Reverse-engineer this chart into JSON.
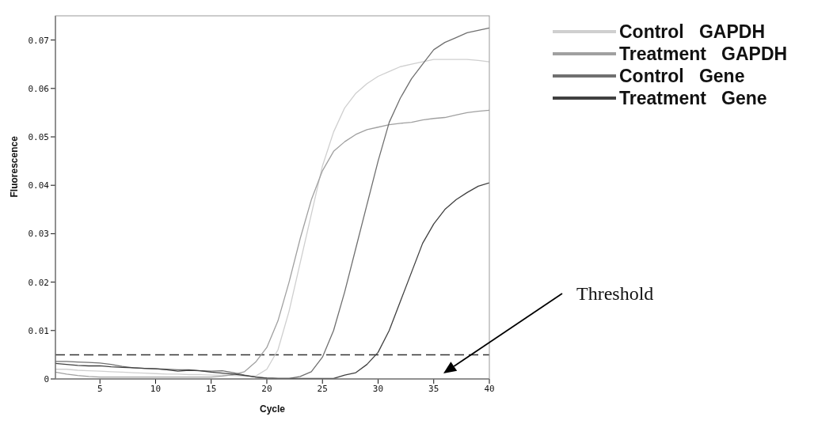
{
  "chart_data": {
    "type": "line",
    "xlabel": "Cycle",
    "ylabel": "Fluorescence",
    "x": [
      1,
      2,
      3,
      4,
      5,
      6,
      7,
      8,
      9,
      10,
      11,
      12,
      13,
      14,
      15,
      16,
      17,
      18,
      19,
      20,
      21,
      22,
      23,
      24,
      25,
      26,
      27,
      28,
      29,
      30,
      31,
      32,
      33,
      34,
      35,
      36,
      37,
      38,
      39,
      40
    ],
    "series": [
      {
        "name": "Control   GAPDH",
        "color": "#cfcfcf",
        "values": [
          0.002,
          0.002,
          0.0018,
          0.0017,
          0.0016,
          0.0015,
          0.0014,
          0.0013,
          0.0012,
          0.0011,
          0.001,
          0.001,
          0.0009,
          0.0009,
          0.0008,
          0.0008,
          0.0007,
          0.0006,
          0.0006,
          0.002,
          0.006,
          0.014,
          0.024,
          0.034,
          0.044,
          0.051,
          0.056,
          0.059,
          0.061,
          0.0625,
          0.0635,
          0.0645,
          0.065,
          0.0655,
          0.066,
          0.066,
          0.066,
          0.066,
          0.0658,
          0.0655
        ]
      },
      {
        "name": "Treatment   GAPDH",
        "color": "#a0a0a0",
        "values": [
          0.0014,
          0.001,
          0.0007,
          0.0005,
          0.0004,
          0.0004,
          0.0004,
          0.0004,
          0.0004,
          0.0004,
          0.0004,
          0.0004,
          0.0004,
          0.0004,
          0.0004,
          0.0006,
          0.0009,
          0.0015,
          0.0035,
          0.0065,
          0.012,
          0.02,
          0.029,
          0.037,
          0.043,
          0.047,
          0.049,
          0.0505,
          0.0515,
          0.052,
          0.0525,
          0.0528,
          0.053,
          0.0535,
          0.0538,
          0.054,
          0.0545,
          0.055,
          0.0553,
          0.0555
        ]
      },
      {
        "name": "Control   Gene",
        "color": "#707070",
        "values": [
          0.0036,
          0.0036,
          0.0035,
          0.0034,
          0.0033,
          0.003,
          0.0026,
          0.0023,
          0.0022,
          0.0021,
          0.002,
          0.0019,
          0.0019,
          0.0017,
          0.0016,
          0.0017,
          0.0013,
          0.0008,
          0.0004,
          0.0002,
          0.0001,
          0.0001,
          0.0005,
          0.0015,
          0.0045,
          0.01,
          0.018,
          0.027,
          0.036,
          0.045,
          0.053,
          0.058,
          0.062,
          0.065,
          0.068,
          0.0695,
          0.0705,
          0.0715,
          0.072,
          0.0725
        ]
      },
      {
        "name": "Treatment   Gene",
        "color": "#404040",
        "values": [
          0.0032,
          0.003,
          0.0028,
          0.0027,
          0.0027,
          0.0025,
          0.0024,
          0.0023,
          0.0022,
          0.0021,
          0.0019,
          0.0016,
          0.0018,
          0.0017,
          0.0014,
          0.0012,
          0.001,
          0.0007,
          0.0004,
          0.0002,
          0.0001,
          0.0001,
          0.0001,
          0.0001,
          0.0001,
          0.0001,
          0.0008,
          0.0013,
          0.003,
          0.0055,
          0.01,
          0.016,
          0.022,
          0.028,
          0.032,
          0.035,
          0.037,
          0.0385,
          0.0398,
          0.0405
        ]
      }
    ],
    "xlim": [
      1,
      40
    ],
    "xticks": [
      5,
      10,
      15,
      20,
      25,
      30,
      35,
      40
    ],
    "ylim": [
      0,
      0.075
    ],
    "yticks": [
      0,
      0.01,
      0.02,
      0.03,
      0.04,
      0.05,
      0.06,
      0.07
    ],
    "ref_lines": [
      {
        "axis": "y",
        "value": 0.005,
        "color": "#333333",
        "line_style": "dashed"
      }
    ],
    "annotations": [
      "Threshold"
    ],
    "legend": "right",
    "grid": false,
    "marker": "none",
    "line_style": "solid"
  }
}
